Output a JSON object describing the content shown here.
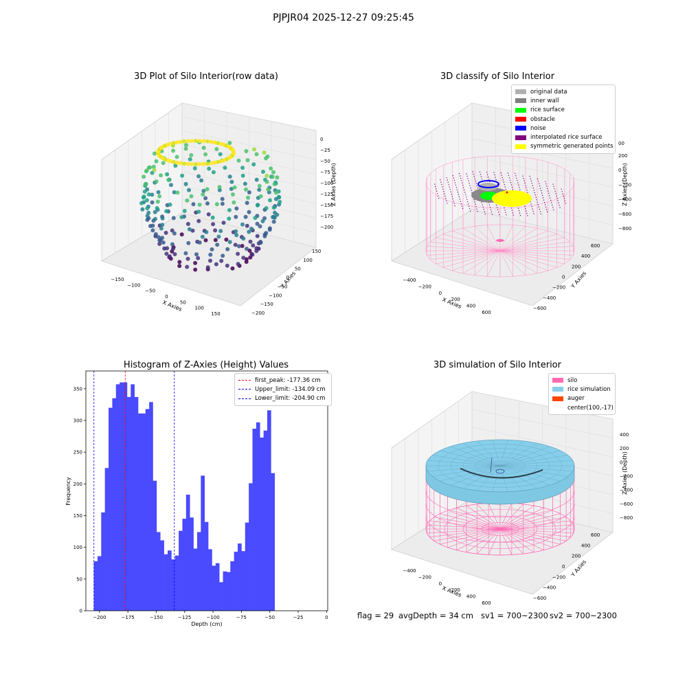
{
  "suptitle": "PJPJR04 2025-12-27 09:25:45",
  "chart_data": [
    {
      "type": "scatter",
      "title": "3D Plot of Silo Interior(row data)",
      "xlabel": "X Axies",
      "ylabel": "Y Axies",
      "zlabel": "Z Axies (Depth)",
      "xticks": [
        "−150",
        "−100",
        "−50",
        "0",
        "50",
        "100",
        "150"
      ],
      "yticks": [
        "−200",
        "−150",
        "−100",
        "−50",
        "0",
        "50",
        "100",
        "150"
      ],
      "zticks": [
        "0",
        "−25",
        "−50",
        "−75",
        "−100",
        "−125",
        "−150",
        "−175",
        "−200"
      ],
      "colormap": "viridis"
    },
    {
      "type": "scatter",
      "title": "3D classify of Silo Interior",
      "xlabel": "X Axies",
      "ylabel": "Y Axies",
      "zlabel": "Z Axies (Depth)",
      "xticks": [
        "−400",
        "−200",
        "0",
        "200",
        "400",
        "600"
      ],
      "yticks": [
        "−600",
        "−400",
        "−200",
        "0",
        "200",
        "400",
        "600"
      ],
      "zticks": [
        "200",
        "0",
        "−200",
        "−400",
        "−600",
        "−800"
      ],
      "zticks_top": "00",
      "legend": [
        {
          "label": "original data",
          "color": "#b0b0b0"
        },
        {
          "label": "inner wall",
          "color": "#808080"
        },
        {
          "label": "rice surface",
          "color": "#00ff00"
        },
        {
          "label": "obstacle",
          "color": "#ff0000"
        },
        {
          "label": "noise",
          "color": "#0000ff"
        },
        {
          "label": "interpolated rice surface",
          "color": "#800080"
        },
        {
          "label": "symmetric generated points",
          "color": "#ffff00"
        }
      ],
      "legend_position": "top-right"
    },
    {
      "type": "bar",
      "title": "Histogram of Z-Axies (Height) Values",
      "xlabel": "Depth (cm)",
      "ylabel": "Frequency",
      "xlim": [
        -212,
        1
      ],
      "ylim": [
        0,
        378
      ],
      "xticks": [
        -200,
        -175,
        -150,
        -125,
        -100,
        -75,
        -50,
        -25,
        0
      ],
      "yticks": [
        0,
        50,
        100,
        150,
        200,
        250,
        300,
        350
      ],
      "xtick_labels": [
        "−200",
        "−175",
        "−150",
        "−125",
        "−100",
        "−75",
        "−50",
        "−25",
        "0"
      ],
      "bin_start": -205,
      "bin_width": 3.25,
      "values": [
        78,
        86,
        155,
        225,
        320,
        335,
        357,
        360,
        360,
        337,
        357,
        337,
        311,
        311,
        318,
        329,
        205,
        124,
        111,
        89,
        95,
        81,
        87,
        126,
        145,
        183,
        147,
        98,
        124,
        213,
        140,
        97,
        71,
        75,
        45,
        62,
        61,
        78,
        93,
        106,
        94,
        139,
        201,
        287,
        297,
        273,
        284,
        316,
        217
      ],
      "bar_color": "#4a4aff",
      "lines": [
        {
          "label": "first_peak: -177.36 cm",
          "x": -177.36,
          "color": "#ff0000"
        },
        {
          "label": "Upper_limit: -134.09 cm",
          "x": -134.09,
          "color": "#0000ff"
        },
        {
          "label": "Lower_limit: -204.90 cm",
          "x": -204.9,
          "color": "#0000ff"
        }
      ],
      "legend_position": "top-right"
    },
    {
      "type": "surface",
      "title": "3D simulation of Silo Interior",
      "xlabel": "X Axies",
      "ylabel": "Y Axies",
      "zlabel": "Z Axies (Depth)",
      "xticks": [
        "−400",
        "−200",
        "0",
        "200",
        "400",
        "600"
      ],
      "yticks": [
        "−600",
        "−400",
        "−200",
        "0",
        "200",
        "400",
        "600"
      ],
      "zticks": [
        "400",
        "200",
        "0",
        "−200",
        "−400",
        "−600",
        "−800"
      ],
      "legend": [
        {
          "label": "silo",
          "color": "#ff69b4"
        },
        {
          "label": "rice simulation",
          "color": "#87ceeb"
        },
        {
          "label": "auger",
          "color": "#ff4500"
        },
        {
          "label": "center(100,-17)",
          "color": ""
        }
      ],
      "legend_position": "top-right"
    }
  ],
  "footer": {
    "flag": "flag = 29",
    "avg": "avgDepth = 34 cm",
    "sv1": "sv1 = 700~2300",
    "sv2": "sv2 = 700~2300"
  }
}
